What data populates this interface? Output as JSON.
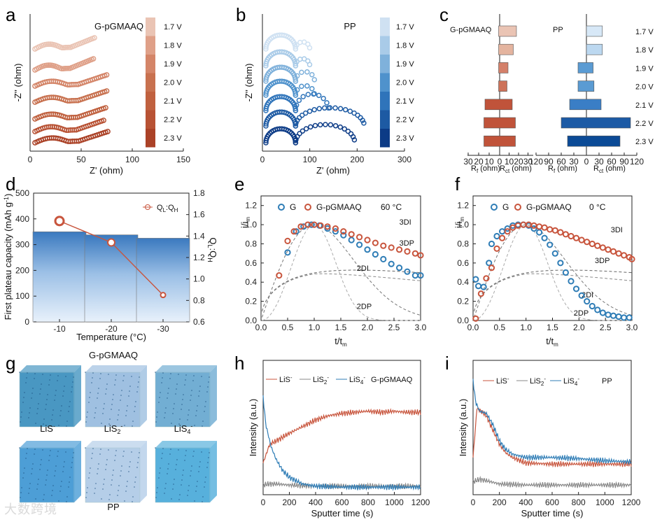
{
  "colors": {
    "red": "#c8553d",
    "red_fill": "#c0533a",
    "blue": "#2f7db6",
    "blue_bar": "#3a79bf",
    "gray": "#888888",
    "red_scale": [
      "#eac4b4",
      "#dfa088",
      "#d48568",
      "#c8714f",
      "#c0613f",
      "#b85234",
      "#ab4227"
    ],
    "blue_scale": [
      "#cfe1f2",
      "#a9cbe8",
      "#7fb1db",
      "#4f92cc",
      "#2f74ba",
      "#1d5aa3",
      "#0c3b86"
    ],
    "rc_red": [
      "#eac4b4",
      "#e4b49f",
      "#d4806a",
      "#cd7259",
      "#c0533a",
      "#c0533a",
      "#c0533a"
    ],
    "rc_blue": [
      "#d7e8f7",
      "#bcd8f0",
      "#5a9bd3",
      "#5a9bd3",
      "#3a7ec6",
      "#1c5aa5",
      "#0b4a96"
    ]
  },
  "panels": {
    "a": {
      "label": "a",
      "sample": "G-pGMAAQ",
      "xlabel": "Z' (ohm)",
      "ylabel": "-Z'' (ohm)",
      "xticks": [
        "0",
        "50",
        "100",
        "150"
      ],
      "voltages": [
        "1.7 V",
        "1.8 V",
        "1.9 V",
        "2.0 V",
        "2.1 V",
        "2.2 V",
        "2.3 V"
      ]
    },
    "b": {
      "label": "b",
      "sample": "PP",
      "xlabel": "Z' (ohm)",
      "ylabel": "-Z'' (ohm)",
      "xticks": [
        "0",
        "100",
        "200",
        "300"
      ],
      "voltages": [
        "1.7 V",
        "1.8 V",
        "1.9 V",
        "2.0 V",
        "2.1 V",
        "2.2 V",
        "2.3 V"
      ]
    },
    "c": {
      "label": "c",
      "left_title": "G-pGMAAQ",
      "right_title": "PP",
      "left_rf_ticks": [
        "30",
        "20",
        "10",
        "0"
      ],
      "left_rct_ticks": [
        "10",
        "20",
        "30"
      ],
      "right_rf_ticks": [
        "120",
        "90",
        "60",
        "30",
        "0"
      ],
      "right_rct_ticks": [
        "30",
        "60",
        "90",
        "120"
      ],
      "rf_label": "R",
      "rf_sub": "f",
      "rct_label": "R",
      "rct_sub": "ct",
      "unit": " (ohm)",
      "voltages": [
        "1.7 V",
        "1.8 V",
        "1.9 V",
        "2.0 V",
        "2.1 V",
        "2.2 V",
        "2.3 V"
      ]
    },
    "d": {
      "label": "d",
      "legend_prefix": "Q",
      "legend_sub1": "L",
      "legend_mid": ":Q",
      "legend_sub2": "H",
      "ylabel": "First plateau capacity (mAh g",
      "ylabel_sup": "-1",
      "ylabel_end": ")",
      "y2label": "Q",
      "y2_sub1": "L",
      "y2_mid": ":Q",
      "y2_sub2": "H",
      "xlabel": "Temperature (°C)",
      "xticks": [
        "-10",
        "-20",
        "-30"
      ],
      "yticks": [
        "0",
        "100",
        "200",
        "300",
        "400",
        "500"
      ],
      "y2ticks": [
        "0.6",
        "0.8",
        "1.0",
        "1.2",
        "1.4",
        "1.6",
        "1.8"
      ]
    },
    "e": {
      "label": "e",
      "legend_g": "G",
      "legend_p": "G-pGMAAQ",
      "temp": "60 °C",
      "curves": [
        "3DI",
        "3DP",
        "2DI",
        "2DP"
      ],
      "xticks": [
        "0.0",
        "0.5",
        "1.0",
        "1.5",
        "2.0",
        "2.5",
        "3.0"
      ],
      "yticks": [
        "0.0",
        "0.2",
        "0.4",
        "0.6",
        "0.8",
        "1.0",
        "1.2"
      ],
      "xlabel": "t/t",
      "xsub": "m",
      "ylabel": "i/i",
      "ysub": "m"
    },
    "f": {
      "label": "f",
      "legend_g": "G",
      "legend_p": "G-pGMAAQ",
      "temp": "0 °C",
      "curves": [
        "3DI",
        "3DP",
        "2DI",
        "2DP"
      ],
      "xticks": [
        "0.0",
        "0.5",
        "1.0",
        "1.5",
        "2.0",
        "2.5",
        "3.0"
      ],
      "yticks": [
        "0.0",
        "0.2",
        "0.4",
        "0.6",
        "0.8",
        "1.0",
        "1.2"
      ],
      "xlabel": "t/t",
      "xsub": "m",
      "ylabel": "i/i",
      "ysub": "m"
    },
    "g": {
      "label": "g",
      "title_top": "G-pGMAAQ",
      "title_bottom": "PP",
      "species": [
        "LiS",
        "LiS",
        "LiS"
      ],
      "sup": [
        "-",
        "-",
        "-"
      ],
      "sub": [
        "",
        "2",
        "4"
      ]
    },
    "h": {
      "label": "h",
      "sample": "G-pGMAAQ",
      "xlabel": "Sputter time (s)",
      "ylabel": "Intensity (a.u.)",
      "xticks": [
        "0",
        "200",
        "400",
        "600",
        "800",
        "1000",
        "1200"
      ],
      "series": [
        "LiS",
        "LiS",
        "LiS"
      ],
      "subs": [
        "",
        "2",
        "4"
      ]
    },
    "i": {
      "label": "i",
      "sample": "PP",
      "xlabel": "Sputter time (s)",
      "ylabel": "Intensity (a.u.)",
      "xticks": [
        "0",
        "200",
        "400",
        "600",
        "800",
        "1000",
        "1200"
      ],
      "series": [
        "LiS",
        "LiS",
        "LiS"
      ],
      "subs": [
        "",
        "2",
        "4"
      ]
    }
  },
  "watermark": "大数跨境",
  "chart_data": [
    {
      "panel": "a",
      "type": "scatter",
      "title": "G-pGMAAQ",
      "xlabel": "Z' (ohm)",
      "ylabel": "-Z'' (ohm)",
      "xlim": [
        0,
        150
      ],
      "series_names": [
        "1.7 V",
        "1.8 V",
        "1.9 V",
        "2.0 V",
        "2.1 V",
        "2.2 V",
        "2.3 V"
      ],
      "end_x": [
        63,
        62,
        75,
        75,
        74,
        72,
        76
      ]
    },
    {
      "panel": "b",
      "type": "scatter",
      "title": "PP",
      "xlabel": "Z' (ohm)",
      "ylabel": "-Z'' (ohm)",
      "xlim": [
        0,
        300
      ],
      "series_names": [
        "1.7 V",
        "1.8 V",
        "1.9 V",
        "2.0 V",
        "2.1 V",
        "2.2 V",
        "2.3 V"
      ],
      "end_x": [
        100,
        100,
        110,
        110,
        140,
        215,
        195
      ]
    },
    {
      "panel": "c",
      "type": "bar",
      "categories": [
        "1.7 V",
        "1.8 V",
        "1.9 V",
        "2.0 V",
        "2.1 V",
        "2.2 V",
        "2.3 V"
      ],
      "series": [
        {
          "name": "G-pGMAAQ Rf",
          "values": [
            1,
            1,
            1,
            1,
            14,
            15,
            15
          ]
        },
        {
          "name": "G-pGMAAQ Rct",
          "values": [
            16,
            13,
            8,
            7,
            12,
            15,
            15
          ]
        },
        {
          "name": "PP Rf",
          "values": [
            0,
            0,
            20,
            20,
            40,
            60,
            45
          ]
        },
        {
          "name": "PP Rct",
          "values": [
            38,
            38,
            16,
            18,
            35,
            105,
            80
          ]
        }
      ]
    },
    {
      "panel": "d",
      "type": "bar",
      "categories": [
        "-10",
        "-20",
        "-30"
      ],
      "series": [
        {
          "name": "First plateau capacity",
          "values": [
            350,
            338,
            325
          ]
        },
        {
          "name": "QL:QH",
          "values": [
            1.54,
            1.34,
            0.85
          ]
        }
      ],
      "ylim": [
        0,
        500
      ],
      "y2lim": [
        0.6,
        1.8
      ],
      "xlabel": "Temperature (°C)",
      "ylabel": "First plateau capacity (mAh g-1)"
    },
    {
      "panel": "e",
      "type": "scatter",
      "xlim": [
        0,
        3
      ],
      "ylim": [
        0,
        1.2
      ],
      "note": "60 °C",
      "series": [
        {
          "name": "G",
          "x": [
            0.5,
            0.66,
            0.8,
            0.95,
            1.1,
            1.25,
            1.4,
            1.55,
            1.7,
            1.85,
            2.0,
            2.15,
            2.3,
            2.45,
            2.6,
            2.75,
            2.9,
            3.0
          ],
          "y": [
            0.71,
            0.93,
            0.98,
            1.0,
            0.99,
            0.96,
            0.93,
            0.89,
            0.84,
            0.79,
            0.74,
            0.69,
            0.64,
            0.59,
            0.55,
            0.51,
            0.47,
            0.47
          ]
        },
        {
          "name": "G-pGMAAQ",
          "x": [
            0.34,
            0.5,
            0.62,
            0.75,
            0.88,
            1.0,
            1.12,
            1.25,
            1.4,
            1.55,
            1.7,
            1.85,
            2.0,
            2.15,
            2.3,
            2.45,
            2.6,
            2.75,
            2.9,
            3.0
          ],
          "y": [
            0.47,
            0.83,
            0.93,
            0.98,
            1.0,
            1.0,
            0.99,
            0.98,
            0.96,
            0.93,
            0.9,
            0.87,
            0.84,
            0.81,
            0.78,
            0.76,
            0.74,
            0.72,
            0.7,
            0.68
          ]
        }
      ]
    },
    {
      "panel": "f",
      "type": "scatter",
      "xlim": [
        0,
        3
      ],
      "ylim": [
        0,
        1.2
      ],
      "note": "0 °C",
      "series": [
        {
          "name": "G",
          "x": [
            0.05,
            0.1,
            0.2,
            0.3,
            0.35,
            0.45,
            0.55,
            0.65,
            0.75,
            0.85,
            0.95,
            1.05,
            1.15,
            1.25,
            1.35,
            1.45,
            1.55,
            1.65,
            1.75,
            1.85,
            1.95,
            2.05,
            2.15,
            2.25,
            2.35,
            2.45,
            2.55,
            2.65,
            2.75,
            2.85,
            2.95
          ],
          "y": [
            0.43,
            0.36,
            0.35,
            0.6,
            0.8,
            0.88,
            0.93,
            0.96,
            0.99,
            1.0,
            1.0,
            0.99,
            0.96,
            0.92,
            0.86,
            0.79,
            0.7,
            0.6,
            0.5,
            0.41,
            0.33,
            0.26,
            0.2,
            0.15,
            0.11,
            0.08,
            0.06,
            0.05,
            0.04,
            0.03,
            0.03
          ]
        },
        {
          "name": "G-pGMAAQ",
          "x": [
            0.05,
            0.15,
            0.25,
            0.35,
            0.45,
            0.55,
            0.65,
            0.75,
            0.85,
            0.95,
            1.05,
            1.15,
            1.25,
            1.35,
            1.45,
            1.55,
            1.65,
            1.75,
            1.85,
            1.95,
            2.05,
            2.15,
            2.25,
            2.35,
            2.45,
            2.55,
            2.65,
            2.75,
            2.85,
            2.95,
            3.0
          ],
          "y": [
            0.02,
            0.28,
            0.44,
            0.55,
            0.75,
            0.86,
            0.93,
            0.97,
            0.99,
            1.0,
            1.0,
            0.99,
            0.98,
            0.97,
            0.95,
            0.94,
            0.92,
            0.9,
            0.88,
            0.86,
            0.84,
            0.82,
            0.8,
            0.78,
            0.76,
            0.74,
            0.72,
            0.7,
            0.68,
            0.66,
            0.64
          ]
        }
      ]
    },
    {
      "panel": "h",
      "type": "line",
      "xlim": [
        0,
        1200
      ],
      "xlabel": "Sputter time (s)",
      "ylabel": "Intensity (a.u.)",
      "series": [
        {
          "name": "LiS-",
          "x": [
            0,
            50,
            100,
            200,
            300,
            400,
            500,
            600,
            700,
            800,
            900,
            1000,
            1100,
            1200
          ],
          "y": [
            0.25,
            0.42,
            0.45,
            0.52,
            0.58,
            0.64,
            0.68,
            0.7,
            0.71,
            0.72,
            0.71,
            0.72,
            0.71,
            0.71
          ]
        },
        {
          "name": "LiS2-",
          "x": [
            0,
            50,
            100,
            200,
            400,
            600,
            800,
            1000,
            1200
          ],
          "y": [
            0.05,
            0.06,
            0.06,
            0.05,
            0.04,
            0.04,
            0.04,
            0.04,
            0.04
          ]
        },
        {
          "name": "LiS4-",
          "x": [
            0,
            20,
            40,
            60,
            100,
            150,
            200,
            300,
            400,
            600,
            800,
            1000,
            1200
          ],
          "y": [
            0.85,
            0.6,
            0.5,
            0.4,
            0.28,
            0.18,
            0.12,
            0.06,
            0.04,
            0.03,
            0.03,
            0.03,
            0.03
          ]
        }
      ]
    },
    {
      "panel": "i",
      "type": "line",
      "xlim": [
        0,
        1200
      ],
      "xlabel": "Sputter time (s)",
      "ylabel": "Intensity (a.u.)",
      "series": [
        {
          "name": "LiS-",
          "x": [
            0,
            30,
            60,
            100,
            150,
            200,
            250,
            300,
            400,
            600,
            800,
            1000,
            1200
          ],
          "y": [
            0.3,
            0.75,
            0.72,
            0.68,
            0.55,
            0.42,
            0.34,
            0.3,
            0.25,
            0.24,
            0.24,
            0.24,
            0.24
          ]
        },
        {
          "name": "LiS2-",
          "x": [
            0,
            50,
            100,
            200,
            400,
            600,
            800,
            1000,
            1200
          ],
          "y": [
            0.08,
            0.1,
            0.09,
            0.06,
            0.05,
            0.05,
            0.05,
            0.05,
            0.05
          ]
        },
        {
          "name": "LiS4-",
          "x": [
            0,
            20,
            50,
            100,
            150,
            200,
            250,
            300,
            400,
            600,
            800,
            1000,
            1200
          ],
          "y": [
            1.0,
            0.8,
            0.72,
            0.7,
            0.6,
            0.45,
            0.37,
            0.33,
            0.3,
            0.3,
            0.29,
            0.27,
            0.26
          ]
        }
      ]
    }
  ]
}
